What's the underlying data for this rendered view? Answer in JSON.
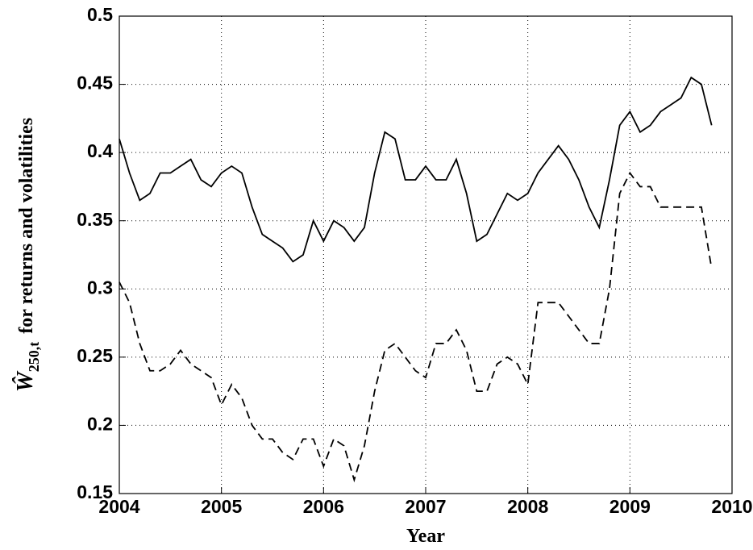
{
  "chart_data": {
    "type": "line",
    "xlabel": "Year",
    "ylabel_symbol": "Ŵ",
    "ylabel_subscript": "250,t",
    "ylabel_text": "for returns and volatilities",
    "x": [
      2004.0,
      2004.1,
      2004.2,
      2004.3,
      2004.4,
      2004.5,
      2004.6,
      2004.7,
      2004.8,
      2004.9,
      2005.0,
      2005.1,
      2005.2,
      2005.3,
      2005.4,
      2005.5,
      2005.6,
      2005.7,
      2005.8,
      2005.9,
      2006.0,
      2006.1,
      2006.2,
      2006.3,
      2006.4,
      2006.5,
      2006.6,
      2006.7,
      2006.8,
      2006.9,
      2007.0,
      2007.1,
      2007.2,
      2007.3,
      2007.4,
      2007.5,
      2007.6,
      2007.7,
      2007.8,
      2007.9,
      2008.0,
      2008.1,
      2008.2,
      2008.3,
      2008.4,
      2008.5,
      2008.6,
      2008.7,
      2008.8,
      2008.9,
      2009.0,
      2009.1,
      2009.2,
      2009.3,
      2009.4,
      2009.5,
      2009.6,
      2009.7,
      2009.8
    ],
    "series": [
      {
        "color": "#000000",
        "line_style": "solid",
        "values": [
          0.41,
          0.385,
          0.365,
          0.37,
          0.385,
          0.385,
          0.39,
          0.395,
          0.38,
          0.375,
          0.385,
          0.39,
          0.385,
          0.36,
          0.34,
          0.335,
          0.33,
          0.32,
          0.325,
          0.35,
          0.335,
          0.35,
          0.345,
          0.335,
          0.345,
          0.385,
          0.415,
          0.41,
          0.38,
          0.38,
          0.39,
          0.38,
          0.38,
          0.395,
          0.37,
          0.335,
          0.34,
          0.355,
          0.37,
          0.365,
          0.37,
          0.385,
          0.395,
          0.405,
          0.395,
          0.38,
          0.36,
          0.345,
          0.38,
          0.42,
          0.43,
          0.415,
          0.42,
          0.43,
          0.435,
          0.44,
          0.455,
          0.45,
          0.42
        ]
      },
      {
        "color": "#000000",
        "line_style": "dashed",
        "values": [
          0.305,
          0.29,
          0.26,
          0.24,
          0.24,
          0.245,
          0.255,
          0.245,
          0.24,
          0.235,
          0.215,
          0.23,
          0.22,
          0.2,
          0.19,
          0.19,
          0.18,
          0.175,
          0.19,
          0.19,
          0.17,
          0.19,
          0.185,
          0.16,
          0.185,
          0.225,
          0.255,
          0.26,
          0.25,
          0.24,
          0.235,
          0.26,
          0.26,
          0.27,
          0.255,
          0.225,
          0.225,
          0.245,
          0.25,
          0.245,
          0.23,
          0.29,
          0.29,
          0.29,
          0.28,
          0.27,
          0.26,
          0.26,
          0.3,
          0.37,
          0.385,
          0.375,
          0.375,
          0.36,
          0.36,
          0.36,
          0.36,
          0.36,
          0.315
        ]
      }
    ],
    "xlim": [
      2004,
      2010
    ],
    "xticks": [
      2004,
      2005,
      2006,
      2007,
      2008,
      2009,
      2010
    ],
    "ylim": [
      0.15,
      0.5
    ],
    "yticks": [
      0.15,
      0.2,
      0.25,
      0.3,
      0.35,
      0.4,
      0.45,
      0.5
    ],
    "grid": true
  }
}
